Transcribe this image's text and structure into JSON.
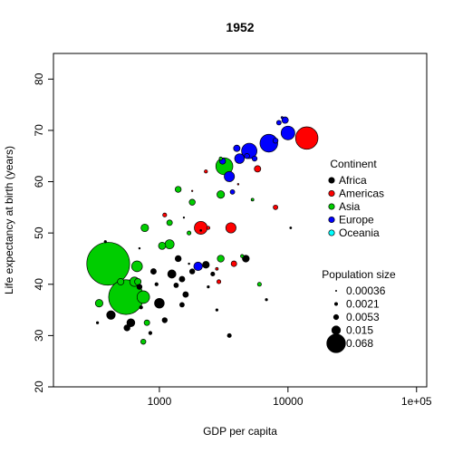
{
  "chart_data": {
    "type": "scatter",
    "title": "1952",
    "xlabel": "GDP per capita",
    "ylabel": "Life expectancy at birth (years)",
    "xscale": "log",
    "xlim": [
      150,
      120000
    ],
    "ylim": [
      20,
      85
    ],
    "x_ticks": [
      {
        "value": 1000,
        "label": "1000"
      },
      {
        "value": 10000,
        "label": "10000"
      },
      {
        "value": 100000,
        "label": "1e+05"
      }
    ],
    "y_ticks": [
      {
        "value": 20,
        "label": "20"
      },
      {
        "value": 30,
        "label": "30"
      },
      {
        "value": 40,
        "label": "40"
      },
      {
        "value": 50,
        "label": "50"
      },
      {
        "value": 60,
        "label": "60"
      },
      {
        "value": 70,
        "label": "70"
      },
      {
        "value": 80,
        "label": "80"
      }
    ],
    "grid": false,
    "legend_continent": {
      "title": "Continent",
      "placement": "right",
      "entries": [
        {
          "label": "Africa",
          "color": "#000000"
        },
        {
          "label": "Americas",
          "color": "#ff0000"
        },
        {
          "label": "Asia",
          "color": "#00cd00"
        },
        {
          "label": "Europe",
          "color": "#0000ff"
        },
        {
          "label": "Oceania",
          "color": "#00ffff"
        }
      ]
    },
    "legend_size": {
      "title": "Population size",
      "placement": "bottom-right",
      "entries": [
        {
          "label": "0.00036",
          "value": 0.00036
        },
        {
          "label": "0.0021",
          "value": 0.0021
        },
        {
          "label": "0.0053",
          "value": 0.0053
        },
        {
          "label": "0.015",
          "value": 0.015
        },
        {
          "label": "0.068",
          "value": 0.068
        }
      ]
    },
    "points": [
      {
        "gdp": 400,
        "life": 44.0,
        "pop": 0.35,
        "continent": "Asia"
      },
      {
        "gdp": 550,
        "life": 37.5,
        "pop": 0.23,
        "continent": "Asia"
      },
      {
        "gdp": 14000,
        "life": 68.5,
        "pop": 0.096,
        "continent": "Americas"
      },
      {
        "gdp": 7100,
        "life": 67.5,
        "pop": 0.06,
        "continent": "Europe"
      },
      {
        "gdp": 3200,
        "life": 63.0,
        "pop": 0.055,
        "continent": "Asia"
      },
      {
        "gdp": 5000,
        "life": 66.0,
        "pop": 0.045,
        "continent": "Europe"
      },
      {
        "gdp": 10000,
        "life": 69.5,
        "pop": 0.036,
        "continent": "Europe"
      },
      {
        "gdp": 2100,
        "life": 51.0,
        "pop": 0.032,
        "continent": "Americas"
      },
      {
        "gdp": 750,
        "life": 37.5,
        "pop": 0.03,
        "continent": "Asia"
      },
      {
        "gdp": 670,
        "life": 43.5,
        "pop": 0.022,
        "continent": "Asia"
      },
      {
        "gdp": 3500,
        "life": 61.0,
        "pop": 0.02,
        "continent": "Europe"
      },
      {
        "gdp": 3600,
        "life": 51.0,
        "pop": 0.02,
        "continent": "Americas"
      },
      {
        "gdp": 4200,
        "life": 64.5,
        "pop": 0.018,
        "continent": "Europe"
      },
      {
        "gdp": 1000,
        "life": 36.3,
        "pop": 0.018,
        "continent": "Africa"
      },
      {
        "gdp": 640,
        "life": 40.5,
        "pop": 0.017,
        "continent": "Asia"
      },
      {
        "gdp": 1200,
        "life": 47.8,
        "pop": 0.016,
        "continent": "Asia"
      },
      {
        "gdp": 2000,
        "life": 43.5,
        "pop": 0.014,
        "continent": "Europe"
      },
      {
        "gdp": 420,
        "life": 34.0,
        "pop": 0.014,
        "continent": "Africa"
      },
      {
        "gdp": 1250,
        "life": 42.0,
        "pop": 0.013,
        "continent": "Africa"
      },
      {
        "gdp": 600,
        "life": 32.5,
        "pop": 0.012,
        "continent": "Africa"
      },
      {
        "gdp": 340,
        "life": 36.3,
        "pop": 0.011,
        "continent": "Asia"
      },
      {
        "gdp": 3000,
        "life": 57.5,
        "pop": 0.011,
        "continent": "Asia"
      },
      {
        "gdp": 770,
        "life": 51.0,
        "pop": 0.011,
        "continent": "Asia"
      },
      {
        "gdp": 1050,
        "life": 47.5,
        "pop": 0.01,
        "continent": "Asia"
      },
      {
        "gdp": 4700,
        "life": 45.0,
        "pop": 0.009,
        "continent": "Africa"
      },
      {
        "gdp": 2300,
        "life": 43.8,
        "pop": 0.009,
        "continent": "Africa"
      },
      {
        "gdp": 3000,
        "life": 45.0,
        "pop": 0.009,
        "continent": "Asia"
      },
      {
        "gdp": 9500,
        "life": 72.0,
        "pop": 0.008,
        "continent": "Europe"
      },
      {
        "gdp": 5800,
        "life": 62.5,
        "pop": 0.008,
        "continent": "Americas"
      },
      {
        "gdp": 4000,
        "life": 66.5,
        "pop": 0.008,
        "continent": "Europe"
      },
      {
        "gdp": 500,
        "life": 40.5,
        "pop": 0.008,
        "continent": "Asia"
      },
      {
        "gdp": 680,
        "life": 40.5,
        "pop": 0.008,
        "continent": "Asia"
      },
      {
        "gdp": 1400,
        "life": 45.0,
        "pop": 0.007,
        "continent": "Africa"
      },
      {
        "gdp": 560,
        "life": 31.5,
        "pop": 0.007,
        "continent": "Africa"
      },
      {
        "gdp": 3100,
        "life": 64.0,
        "pop": 0.007,
        "continent": "Europe"
      },
      {
        "gdp": 1400,
        "life": 58.5,
        "pop": 0.007,
        "continent": "Asia"
      },
      {
        "gdp": 1800,
        "life": 56.0,
        "pop": 0.007,
        "continent": "Asia"
      },
      {
        "gdp": 1200,
        "life": 52.0,
        "pop": 0.006,
        "continent": "Asia"
      },
      {
        "gdp": 800,
        "life": 32.5,
        "pop": 0.006,
        "continent": "Asia"
      },
      {
        "gdp": 1600,
        "life": 38.0,
        "pop": 0.006,
        "continent": "Africa"
      },
      {
        "gdp": 1500,
        "life": 41.0,
        "pop": 0.006,
        "continent": "Africa"
      },
      {
        "gdp": 900,
        "life": 42.5,
        "pop": 0.006,
        "continent": "Africa"
      },
      {
        "gdp": 3800,
        "life": 44.0,
        "pop": 0.006,
        "continent": "Americas"
      },
      {
        "gdp": 750,
        "life": 28.8,
        "pop": 0.005,
        "continent": "Asia"
      },
      {
        "gdp": 1100,
        "life": 33.0,
        "pop": 0.005,
        "continent": "Africa"
      },
      {
        "gdp": 700,
        "life": 39.5,
        "pop": 0.005,
        "continent": "Africa"
      },
      {
        "gdp": 1800,
        "life": 42.5,
        "pop": 0.005,
        "continent": "Africa"
      },
      {
        "gdp": 5500,
        "life": 64.5,
        "pop": 0.005,
        "continent": "Europe"
      },
      {
        "gdp": 8000,
        "life": 68.0,
        "pop": 0.005,
        "continent": "Europe"
      },
      {
        "gdp": 4800,
        "life": 65.0,
        "pop": 0.005,
        "continent": "Europe"
      },
      {
        "gdp": 3700,
        "life": 58.0,
        "pop": 0.004,
        "continent": "Europe"
      },
      {
        "gdp": 8500,
        "life": 71.5,
        "pop": 0.004,
        "continent": "Europe"
      },
      {
        "gdp": 8000,
        "life": 55.0,
        "pop": 0.004,
        "continent": "Americas"
      },
      {
        "gdp": 1500,
        "life": 36.0,
        "pop": 0.004,
        "continent": "Africa"
      },
      {
        "gdp": 1350,
        "life": 39.8,
        "pop": 0.004,
        "continent": "Africa"
      },
      {
        "gdp": 6000,
        "life": 40.0,
        "pop": 0.003,
        "continent": "Asia"
      },
      {
        "gdp": 3500,
        "life": 30.0,
        "pop": 0.003,
        "continent": "Africa"
      },
      {
        "gdp": 1100,
        "life": 53.5,
        "pop": 0.003,
        "continent": "Americas"
      },
      {
        "gdp": 2900,
        "life": 40.5,
        "pop": 0.003,
        "continent": "Americas"
      },
      {
        "gdp": 1700,
        "life": 50.0,
        "pop": 0.003,
        "continent": "Asia"
      },
      {
        "gdp": 2600,
        "life": 42.0,
        "pop": 0.003,
        "continent": "Africa"
      },
      {
        "gdp": 850,
        "life": 30.5,
        "pop": 0.002,
        "continent": "Africa"
      },
      {
        "gdp": 720,
        "life": 35.5,
        "pop": 0.002,
        "continent": "Africa"
      },
      {
        "gdp": 950,
        "life": 40.0,
        "pop": 0.002,
        "continent": "Africa"
      },
      {
        "gdp": 2400,
        "life": 51.0,
        "pop": 0.002,
        "continent": "Americas"
      },
      {
        "gdp": 2300,
        "life": 62.0,
        "pop": 0.002,
        "continent": "Americas"
      },
      {
        "gdp": 4400,
        "life": 45.5,
        "pop": 0.002,
        "continent": "Asia"
      },
      {
        "gdp": 3000,
        "life": 64.5,
        "pop": 0.002,
        "continent": "Asia"
      },
      {
        "gdp": 5300,
        "life": 56.5,
        "pop": 0.0015,
        "continent": "Asia"
      },
      {
        "gdp": 2800,
        "life": 43.0,
        "pop": 0.0015,
        "continent": "Americas"
      },
      {
        "gdp": 330,
        "life": 32.5,
        "pop": 0.001,
        "continent": "Africa"
      },
      {
        "gdp": 380,
        "life": 48.3,
        "pop": 0.001,
        "continent": "Africa"
      },
      {
        "gdp": 2800,
        "life": 35.0,
        "pop": 0.001,
        "continent": "Africa"
      },
      {
        "gdp": 2400,
        "life": 39.5,
        "pop": 0.001,
        "continent": "Africa"
      },
      {
        "gdp": 6800,
        "life": 37.0,
        "pop": 0.001,
        "continent": "Africa"
      },
      {
        "gdp": 9000,
        "life": 72.5,
        "pop": 0.0008,
        "continent": "Europe"
      },
      {
        "gdp": 10500,
        "life": 51.0,
        "pop": 0.0007,
        "continent": "Africa"
      },
      {
        "gdp": 2100,
        "life": 50.5,
        "pop": 0.0006,
        "continent": "Africa"
      },
      {
        "gdp": 4100,
        "life": 59.5,
        "pop": 0.0005,
        "continent": "Americas"
      },
      {
        "gdp": 700,
        "life": 47.0,
        "pop": 0.0005,
        "continent": "Africa"
      },
      {
        "gdp": 1700,
        "life": 44.0,
        "pop": 0.0005,
        "continent": "Africa"
      },
      {
        "gdp": 1800,
        "life": 58.2,
        "pop": 0.0004,
        "continent": "Americas"
      },
      {
        "gdp": 1550,
        "life": 53.0,
        "pop": 0.0004,
        "continent": "Africa"
      }
    ]
  }
}
